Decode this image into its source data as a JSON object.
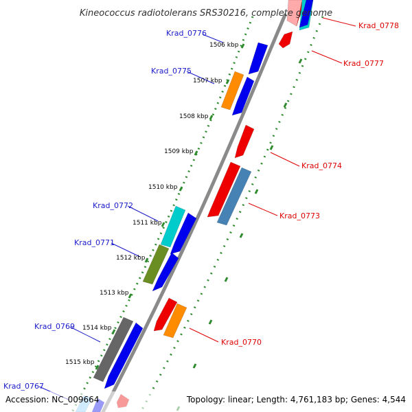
{
  "title": "Kineococcus radiotolerans SRS30216, complete genome",
  "footer": {
    "accession": "Accession: NC_009664",
    "topology": "Topology: linear; Length: 4,761,183 bp; Genes: 4,544"
  },
  "colors": {
    "backbone": "#8a8a8a",
    "ruler_dots": "#2e8b2e",
    "label_forward": "#1a1acc",
    "label_reverse": "#e00000",
    "blue": "#0000ee",
    "red": "#ee0000",
    "orange": "#ff8c00",
    "cyan": "#00cccc",
    "olive": "#6b8e23",
    "gray": "#666666",
    "steelblue": "#4682b4",
    "lightblue": "#87cefa",
    "pink": "#ffaaaa"
  },
  "ticks": [
    "1506 kbp",
    "1507 kbp",
    "1508 kbp",
    "1509 kbp",
    "1510 kbp",
    "1511 kbp",
    "1512 kbp",
    "1513 kbp",
    "1514 kbp",
    "1515 kbp"
  ],
  "gene_labels": [
    {
      "id": "Krad_0776",
      "strand": "forward"
    },
    {
      "id": "Krad_0775",
      "strand": "forward"
    },
    {
      "id": "Krad_0772",
      "strand": "forward"
    },
    {
      "id": "Krad_0771",
      "strand": "forward"
    },
    {
      "id": "Krad_0769",
      "strand": "forward"
    },
    {
      "id": "Krad_0767",
      "strand": "forward"
    },
    {
      "id": "Krad_0778",
      "strand": "reverse"
    },
    {
      "id": "Krad_0777",
      "strand": "reverse"
    },
    {
      "id": "Krad_0774",
      "strand": "reverse"
    },
    {
      "id": "Krad_0773",
      "strand": "reverse"
    },
    {
      "id": "Krad_0770",
      "strand": "reverse"
    }
  ]
}
